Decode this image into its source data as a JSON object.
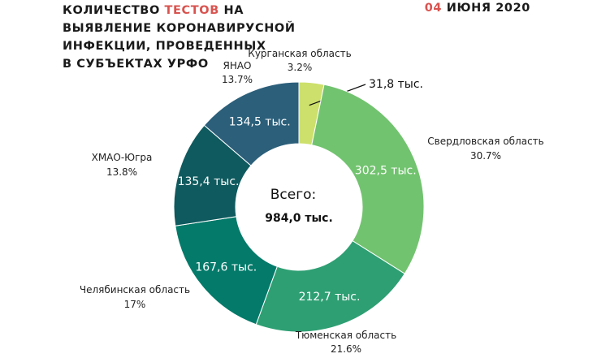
{
  "header": {
    "title_part1": "Количество ",
    "title_accent": "тестов",
    "title_part2": " на",
    "title_line2": "выявление коронавирусной",
    "title_line3": "инфекции, проведенных",
    "title_line4": "в субъектах УрФО",
    "date_day": "04",
    "date_rest": " июня 2020"
  },
  "colors": {
    "accent": "#d9534f"
  },
  "chart_data": {
    "type": "pie",
    "variant": "donut",
    "center_label": "Всего:",
    "center_value": "984,0 тыс.",
    "slices": [
      {
        "name": "Курганская область",
        "value": 31.8,
        "value_label": "31,8 тыс.",
        "percent_label": "3.2%",
        "color": "#cde06b"
      },
      {
        "name": "Свердловская область",
        "value": 302.5,
        "value_label": "302,5 тыс.",
        "percent_label": "30.7%",
        "color": "#72c36f"
      },
      {
        "name": "Тюменская область",
        "value": 212.7,
        "value_label": "212,7 тыс.",
        "percent_label": "21.6%",
        "color": "#2e9f73"
      },
      {
        "name": "Челябинская область",
        "value": 167.6,
        "value_label": "167,6 тыс.",
        "percent_label": "17%",
        "color": "#037a6a"
      },
      {
        "name": "ХМАО-Югра",
        "value": 135.4,
        "value_label": "135,4 тыс.",
        "percent_label": "13.8%",
        "color": "#0f5a5e"
      },
      {
        "name": "ЯНАО",
        "value": 134.5,
        "value_label": "134,5 тыс.",
        "percent_label": "13.7%",
        "color": "#2b5f7a"
      }
    ]
  }
}
